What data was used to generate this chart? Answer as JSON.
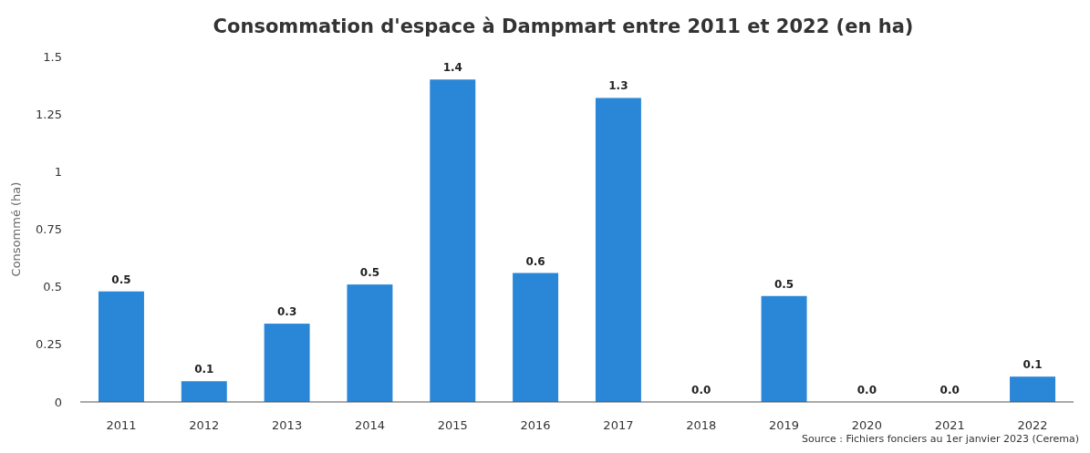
{
  "chart_data": {
    "type": "bar",
    "title": "Consommation d'espace à Dampmart entre 2011 et 2022 (en ha)",
    "ylabel": "Consommé (ha)",
    "categories": [
      "2011",
      "2012",
      "2013",
      "2014",
      "2015",
      "2016",
      "2017",
      "2018",
      "2019",
      "2020",
      "2021",
      "2022"
    ],
    "values": [
      0.48,
      0.09,
      0.34,
      0.51,
      1.4,
      0.56,
      1.32,
      0,
      0.46,
      0,
      0,
      0.11
    ],
    "value_labels": [
      "0.5",
      "0.1",
      "0.3",
      "0.5",
      "1.4",
      "0.6",
      "1.3",
      "0.0",
      "0.5",
      "0.0",
      "0.0",
      "0.1"
    ],
    "color": "#2a86d6",
    "ylim": [
      0,
      1.5
    ],
    "yticks": [
      0,
      0.25,
      0.5,
      0.75,
      1,
      1.25,
      1.5
    ],
    "grid": false,
    "annotations": [
      "Source : Fichiers fonciers au 1er janvier 2023 (Cerema)"
    ]
  }
}
